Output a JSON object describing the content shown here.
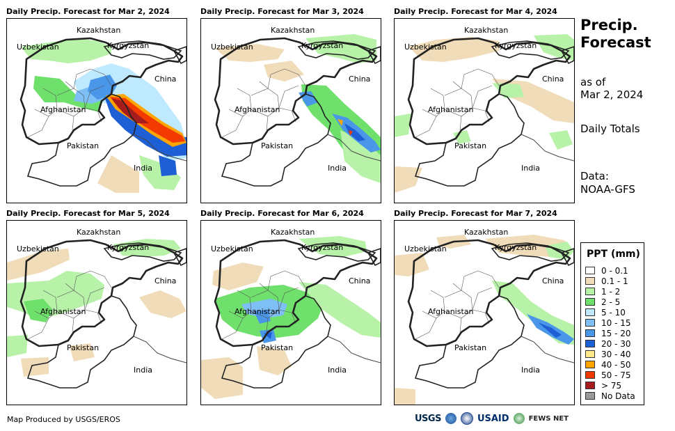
{
  "panels": [
    {
      "title": "Daily Precip. Forecast for Mar 2, 2024"
    },
    {
      "title": "Daily Precip. Forecast for Mar 3, 2024"
    },
    {
      "title": "Daily Precip. Forecast for Mar 4, 2024"
    },
    {
      "title": "Daily Precip. Forecast for Mar 5, 2024"
    },
    {
      "title": "Daily Precip. Forecast for Mar 6, 2024"
    },
    {
      "title": "Daily Precip. Forecast for Mar 7, 2024"
    }
  ],
  "country_labels": {
    "kazakhstan": "Kazakhstan",
    "uzbekistan": "Uzbekistan",
    "kyrgyzstan": "Kyrgyzstan",
    "china": "China",
    "afghanistan": "Afghanistan",
    "pakistan": "Pakistan",
    "india": "India"
  },
  "sidebar": {
    "title_line1": "Precip.",
    "title_line2": "Forecast",
    "as_of_line1": "as of",
    "as_of_line2": "Mar 2, 2024",
    "totals": "Daily Totals",
    "data_line1": "Data:",
    "data_line2": "NOAA-GFS"
  },
  "legend": {
    "title": "PPT (mm)",
    "items": [
      {
        "label": "0 - 0.1",
        "color": "#ffffff"
      },
      {
        "label": "0.1 - 1",
        "color": "#f0dcb8"
      },
      {
        "label": "1 - 2",
        "color": "#b7f2a8"
      },
      {
        "label": "2 - 5",
        "color": "#6fe06b"
      },
      {
        "label": "5 - 10",
        "color": "#bfe9ff"
      },
      {
        "label": "10 - 15",
        "color": "#7ec0f5"
      },
      {
        "label": "15 - 20",
        "color": "#4a97ea"
      },
      {
        "label": "20 - 30",
        "color": "#1f5fd6"
      },
      {
        "label": "30 - 40",
        "color": "#ffe98a"
      },
      {
        "label": "40 - 50",
        "color": "#ffa500"
      },
      {
        "label": "50 - 75",
        "color": "#f33a00"
      },
      {
        "label": "> 75",
        "color": "#a51d1d"
      },
      {
        "label": "No Data",
        "color": "#999999"
      }
    ]
  },
  "footer": {
    "credit": "Map Produced by USGS/EROS",
    "logo_usgs": "USGS",
    "logo_usaid": "USAID",
    "logo_fews": "FEWS NET"
  }
}
